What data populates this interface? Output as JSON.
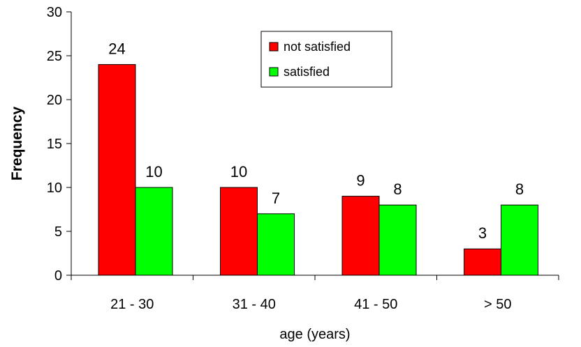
{
  "chart_data": {
    "type": "bar",
    "categories": [
      "21 - 30",
      "31 - 40",
      "41 - 50",
      "> 50"
    ],
    "series": [
      {
        "name": "not satisfied",
        "values": [
          24,
          10,
          9,
          3
        ],
        "color": "#ff0000"
      },
      {
        "name": "satisfied",
        "values": [
          10,
          7,
          8,
          8
        ],
        "color": "#00ff00"
      }
    ],
    "yticks": [
      "0",
      "5",
      "10",
      "15",
      "20",
      "25",
      "30"
    ],
    "ylim": [
      0,
      30
    ],
    "xlabel": "age (years)",
    "ylabel": "Frequency",
    "grid": false,
    "legend_position": "top-center",
    "data_labels": true
  }
}
